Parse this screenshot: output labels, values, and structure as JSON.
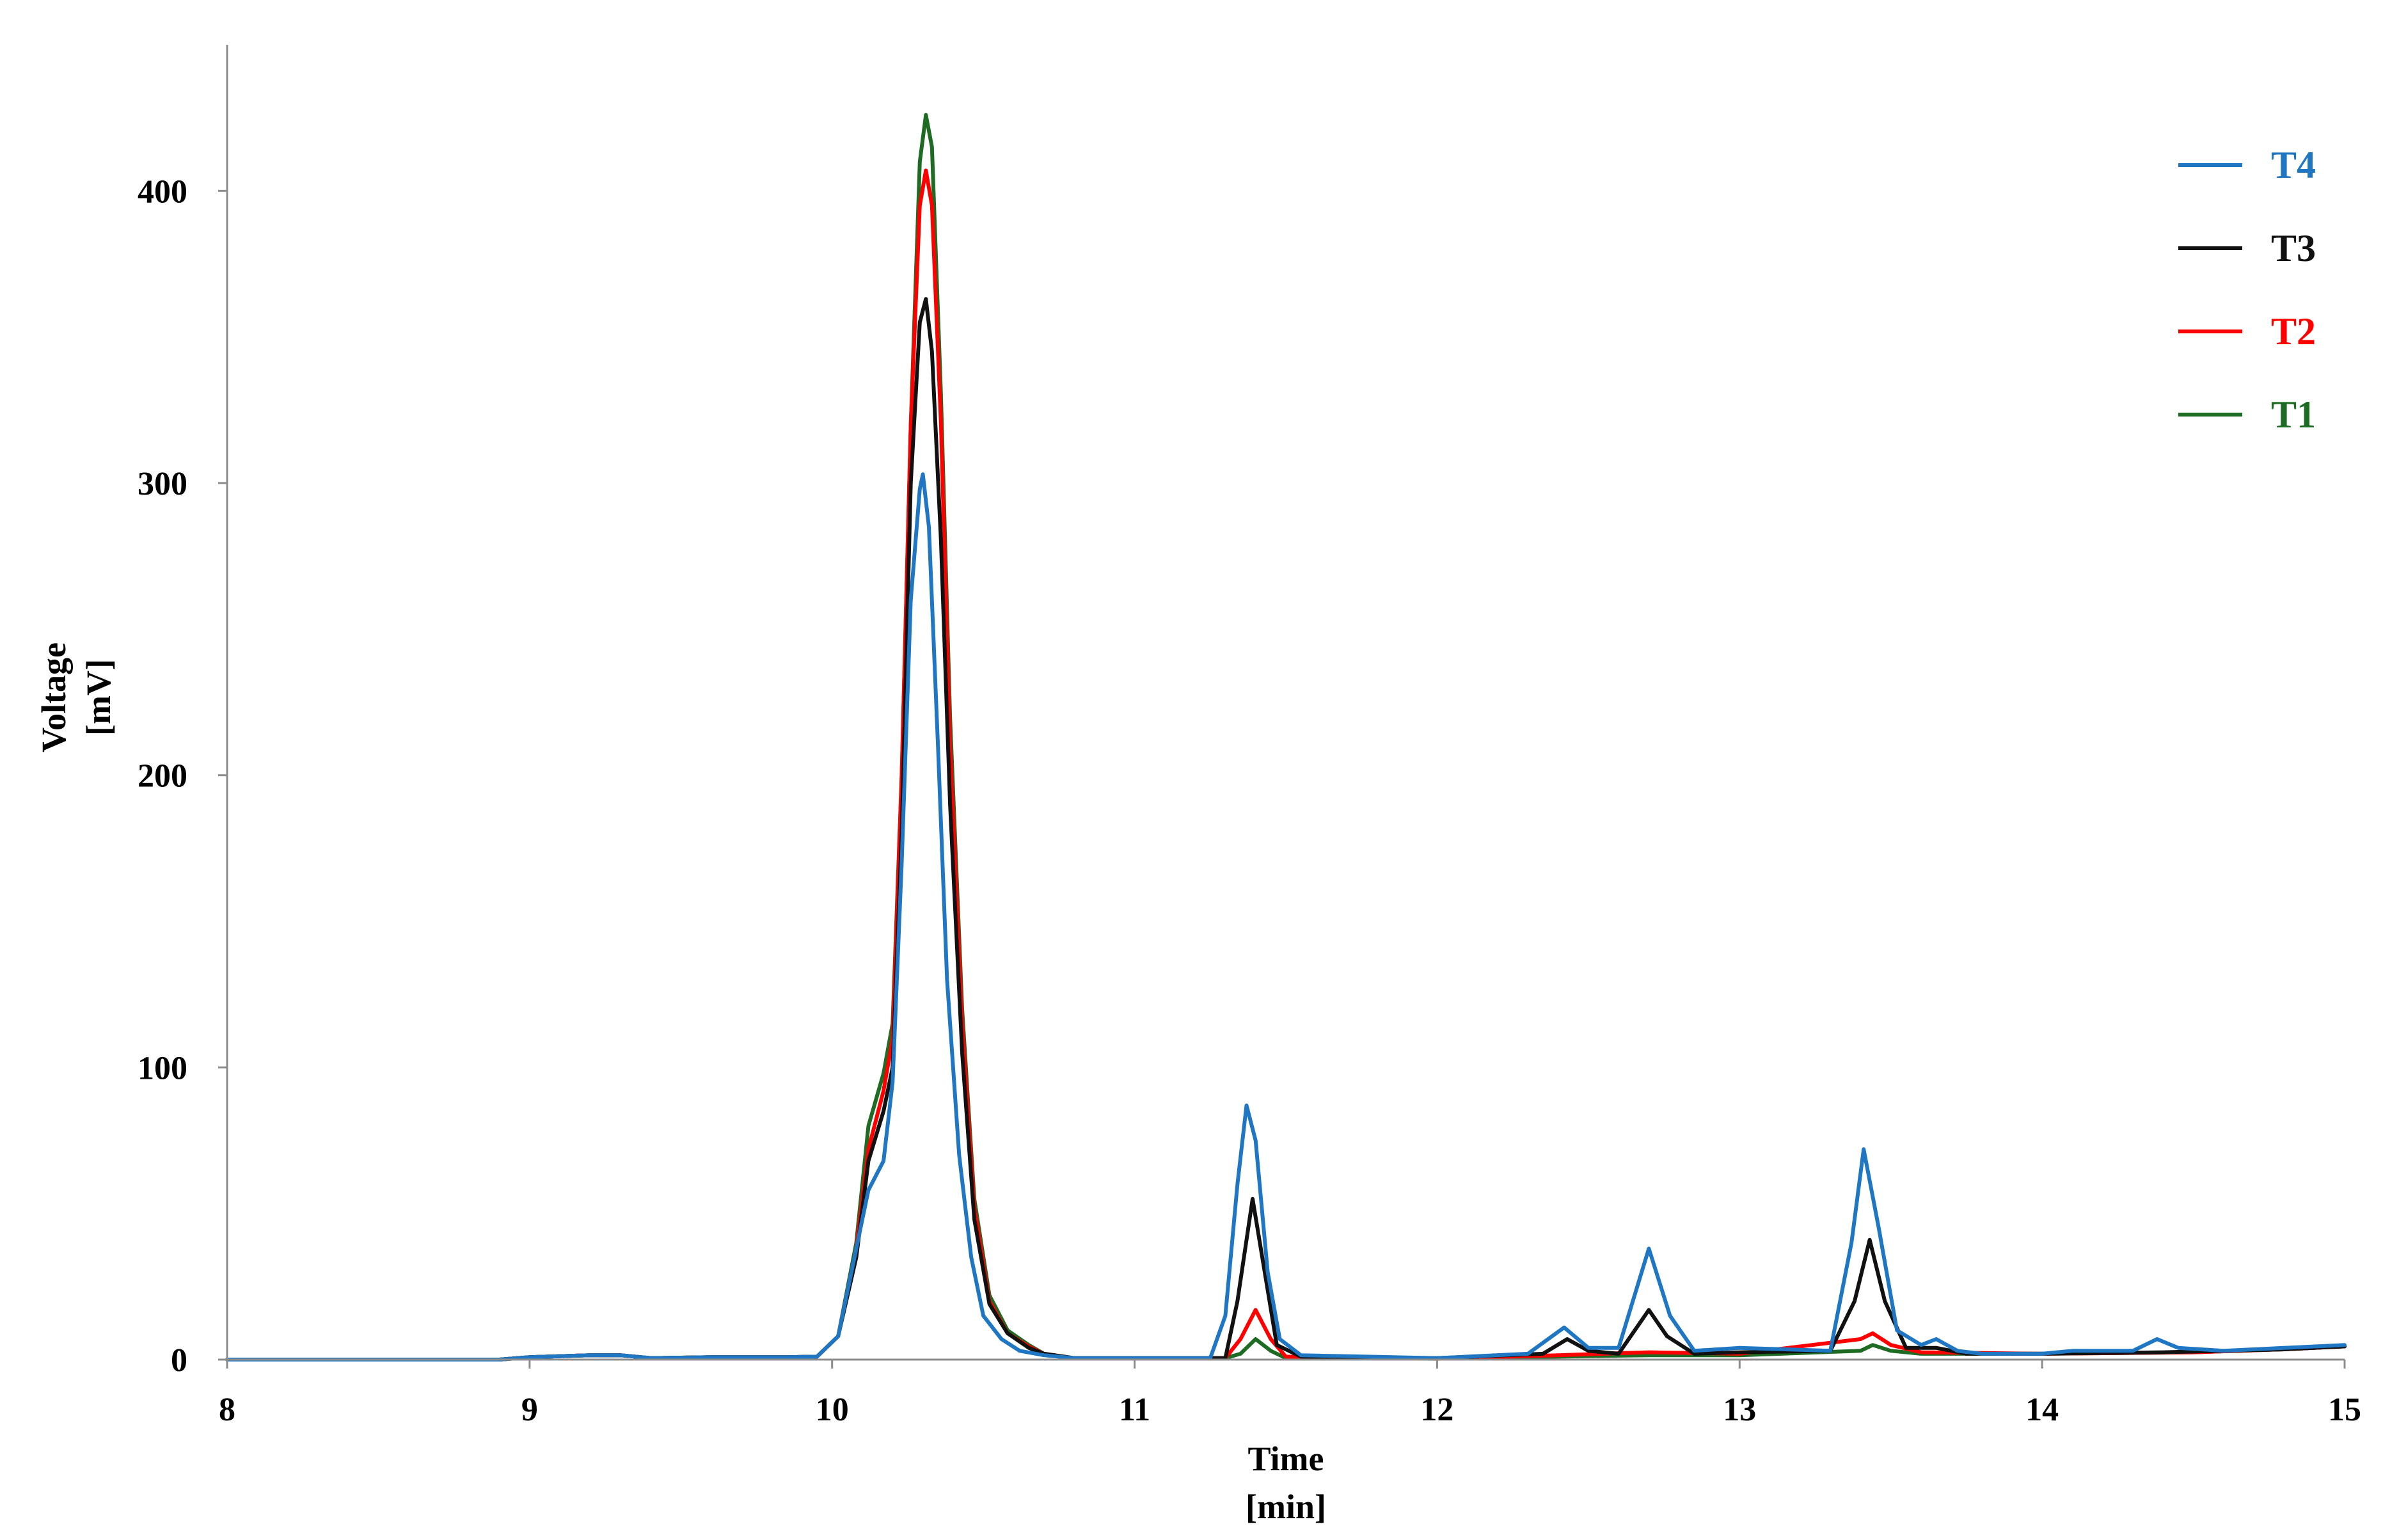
{
  "chart_data": {
    "type": "line",
    "title": "",
    "xlabel_line1": "Time",
    "xlabel_line2": "[min]",
    "ylabel_line1": "Voltage",
    "ylabel_line2": "[mV]",
    "xlim": [
      8,
      15
    ],
    "ylim": [
      0,
      450
    ],
    "x_ticks": [
      8,
      9,
      10,
      11,
      12,
      13,
      14,
      15
    ],
    "y_ticks": [
      0,
      100,
      200,
      300,
      400
    ],
    "grid": false,
    "legend_position": "top-right",
    "series": [
      {
        "name": "T1",
        "color": "#1e6b23",
        "points": [
          [
            8,
            0
          ],
          [
            8.9,
            0
          ],
          [
            9,
            0.8
          ],
          [
            9.2,
            1.5
          ],
          [
            9.3,
            1.5
          ],
          [
            9.4,
            0.5
          ],
          [
            9.6,
            0.8
          ],
          [
            9.85,
            0.8
          ],
          [
            9.95,
            1
          ],
          [
            10.02,
            8
          ],
          [
            10.08,
            40
          ],
          [
            10.12,
            80
          ],
          [
            10.17,
            98
          ],
          [
            10.2,
            115
          ],
          [
            10.23,
            200
          ],
          [
            10.26,
            320
          ],
          [
            10.29,
            410
          ],
          [
            10.31,
            426
          ],
          [
            10.33,
            415
          ],
          [
            10.36,
            330
          ],
          [
            10.39,
            220
          ],
          [
            10.43,
            120
          ],
          [
            10.47,
            55
          ],
          [
            10.52,
            22
          ],
          [
            10.58,
            10
          ],
          [
            10.65,
            5
          ],
          [
            10.7,
            2
          ],
          [
            10.8,
            0.5
          ],
          [
            11,
            0.5
          ],
          [
            11.3,
            0.5
          ],
          [
            11.35,
            2
          ],
          [
            11.4,
            7
          ],
          [
            11.45,
            3
          ],
          [
            11.5,
            0.5
          ],
          [
            12,
            0.3
          ],
          [
            12.4,
            1
          ],
          [
            12.7,
            1.5
          ],
          [
            13,
            1.5
          ],
          [
            13.4,
            3
          ],
          [
            13.44,
            5
          ],
          [
            13.5,
            3
          ],
          [
            13.6,
            2
          ],
          [
            14,
            2
          ],
          [
            14.5,
            2.5
          ],
          [
            14.8,
            3.5
          ],
          [
            15,
            4.5
          ]
        ]
      },
      {
        "name": "T2",
        "color": "#ff0000",
        "points": [
          [
            8,
            0
          ],
          [
            8.9,
            0
          ],
          [
            9,
            0.8
          ],
          [
            9.2,
            1.5
          ],
          [
            9.3,
            1.5
          ],
          [
            9.4,
            0.5
          ],
          [
            9.6,
            0.8
          ],
          [
            9.85,
            0.8
          ],
          [
            9.95,
            1
          ],
          [
            10.02,
            8
          ],
          [
            10.08,
            38
          ],
          [
            10.12,
            72
          ],
          [
            10.17,
            92
          ],
          [
            10.2,
            110
          ],
          [
            10.23,
            200
          ],
          [
            10.26,
            320
          ],
          [
            10.29,
            395
          ],
          [
            10.31,
            407
          ],
          [
            10.33,
            395
          ],
          [
            10.36,
            320
          ],
          [
            10.39,
            210
          ],
          [
            10.43,
            115
          ],
          [
            10.47,
            52
          ],
          [
            10.52,
            20
          ],
          [
            10.58,
            9
          ],
          [
            10.65,
            4.5
          ],
          [
            10.7,
            2
          ],
          [
            10.8,
            0.5
          ],
          [
            11,
            0.5
          ],
          [
            11.3,
            0.5
          ],
          [
            11.35,
            7
          ],
          [
            11.4,
            17
          ],
          [
            11.45,
            7
          ],
          [
            11.5,
            1
          ],
          [
            12,
            0.3
          ],
          [
            12.4,
            1.5
          ],
          [
            12.7,
            2.5
          ],
          [
            13,
            2
          ],
          [
            13.4,
            7
          ],
          [
            13.44,
            9
          ],
          [
            13.5,
            5
          ],
          [
            13.6,
            2.5
          ],
          [
            14,
            2
          ],
          [
            14.5,
            2.5
          ],
          [
            14.8,
            3.5
          ],
          [
            15,
            4.5
          ]
        ]
      },
      {
        "name": "T3",
        "color": "#111111",
        "points": [
          [
            8,
            0
          ],
          [
            8.9,
            0
          ],
          [
            9,
            0.8
          ],
          [
            9.2,
            1.5
          ],
          [
            9.3,
            1.5
          ],
          [
            9.4,
            0.5
          ],
          [
            9.6,
            0.8
          ],
          [
            9.85,
            0.8
          ],
          [
            9.95,
            1
          ],
          [
            10.02,
            8
          ],
          [
            10.08,
            35
          ],
          [
            10.12,
            68
          ],
          [
            10.17,
            85
          ],
          [
            10.2,
            100
          ],
          [
            10.23,
            180
          ],
          [
            10.26,
            300
          ],
          [
            10.29,
            355
          ],
          [
            10.31,
            363
          ],
          [
            10.33,
            345
          ],
          [
            10.36,
            280
          ],
          [
            10.39,
            190
          ],
          [
            10.43,
            105
          ],
          [
            10.47,
            48
          ],
          [
            10.52,
            19
          ],
          [
            10.58,
            9
          ],
          [
            10.65,
            4
          ],
          [
            10.7,
            2
          ],
          [
            10.8,
            0.5
          ],
          [
            11,
            0.5
          ],
          [
            11.3,
            0.5
          ],
          [
            11.34,
            20
          ],
          [
            11.39,
            55
          ],
          [
            11.43,
            30
          ],
          [
            11.47,
            5
          ],
          [
            11.55,
            1
          ],
          [
            12,
            0.5
          ],
          [
            12.35,
            2
          ],
          [
            12.43,
            7
          ],
          [
            12.5,
            3
          ],
          [
            12.6,
            2
          ],
          [
            12.7,
            17
          ],
          [
            12.76,
            8
          ],
          [
            12.85,
            2
          ],
          [
            13,
            2.5
          ],
          [
            13.3,
            3
          ],
          [
            13.38,
            20
          ],
          [
            13.43,
            41
          ],
          [
            13.48,
            20
          ],
          [
            13.55,
            4
          ],
          [
            13.65,
            4
          ],
          [
            13.75,
            2
          ],
          [
            14,
            2
          ],
          [
            14.4,
            2.5
          ],
          [
            14.8,
            3.5
          ],
          [
            15,
            4.5
          ]
        ]
      },
      {
        "name": "T4",
        "color": "#1f77c4",
        "points": [
          [
            8,
            0
          ],
          [
            8.9,
            0
          ],
          [
            9,
            0.8
          ],
          [
            9.2,
            1.5
          ],
          [
            9.3,
            1.5
          ],
          [
            9.4,
            0.5
          ],
          [
            9.6,
            0.8
          ],
          [
            9.85,
            0.8
          ],
          [
            9.95,
            1
          ],
          [
            10.02,
            8
          ],
          [
            10.08,
            38
          ],
          [
            10.12,
            58
          ],
          [
            10.17,
            68
          ],
          [
            10.2,
            95
          ],
          [
            10.23,
            170
          ],
          [
            10.26,
            260
          ],
          [
            10.29,
            298
          ],
          [
            10.3,
            303
          ],
          [
            10.32,
            285
          ],
          [
            10.35,
            210
          ],
          [
            10.38,
            130
          ],
          [
            10.42,
            70
          ],
          [
            10.46,
            35
          ],
          [
            10.5,
            15
          ],
          [
            10.56,
            7
          ],
          [
            10.62,
            3
          ],
          [
            10.7,
            1.5
          ],
          [
            10.8,
            0.5
          ],
          [
            11,
            0.5
          ],
          [
            11.25,
            0.5
          ],
          [
            11.3,
            15
          ],
          [
            11.34,
            60
          ],
          [
            11.37,
            87
          ],
          [
            11.4,
            75
          ],
          [
            11.44,
            30
          ],
          [
            11.48,
            7
          ],
          [
            11.55,
            1.5
          ],
          [
            12,
            0.5
          ],
          [
            12.3,
            2
          ],
          [
            12.42,
            11
          ],
          [
            12.5,
            4
          ],
          [
            12.6,
            4
          ],
          [
            12.7,
            38
          ],
          [
            12.77,
            15
          ],
          [
            12.85,
            3
          ],
          [
            13,
            4
          ],
          [
            13.3,
            3
          ],
          [
            13.37,
            40
          ],
          [
            13.41,
            72
          ],
          [
            13.46,
            45
          ],
          [
            13.52,
            10
          ],
          [
            13.6,
            5
          ],
          [
            13.65,
            7
          ],
          [
            13.72,
            3
          ],
          [
            13.8,
            2
          ],
          [
            14,
            2
          ],
          [
            14.1,
            3
          ],
          [
            14.3,
            3
          ],
          [
            14.38,
            7
          ],
          [
            14.45,
            4
          ],
          [
            14.6,
            3
          ],
          [
            14.8,
            4
          ],
          [
            15,
            5
          ]
        ]
      }
    ],
    "legend": [
      {
        "name": "T4",
        "color": "#1f77c4"
      },
      {
        "name": "T3",
        "color": "#111111"
      },
      {
        "name": "T2",
        "color": "#ff0000"
      },
      {
        "name": "T1",
        "color": "#1e6b23"
      }
    ]
  }
}
